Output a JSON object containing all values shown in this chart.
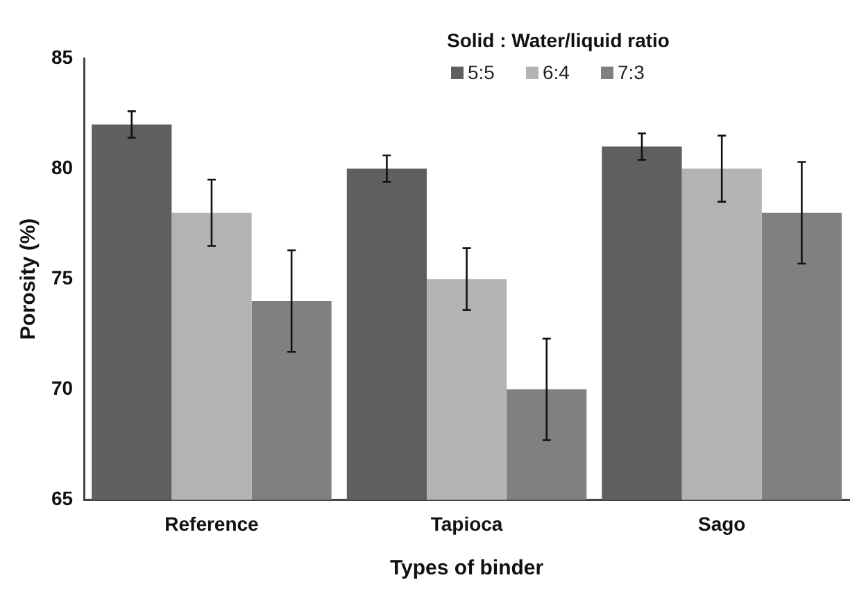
{
  "chart_data": {
    "type": "bar",
    "xlabel": "Types of binder",
    "ylabel": "Porosity (%)",
    "legend_title": "Solid : Water/liquid ratio",
    "categories": [
      "Reference",
      "Tapioca",
      "Sago"
    ],
    "series": [
      {
        "name": "5:5",
        "color": "#5f5f5f",
        "values": [
          82,
          80,
          81
        ],
        "errors": [
          0.6,
          0.6,
          0.6
        ]
      },
      {
        "name": "6:4",
        "color": "#b3b3b3",
        "values": [
          78,
          75,
          80
        ],
        "errors": [
          1.5,
          1.4,
          1.5
        ]
      },
      {
        "name": "7:3",
        "color": "#808080",
        "values": [
          74,
          70,
          78
        ],
        "errors": [
          2.3,
          2.3,
          2.3
        ]
      }
    ],
    "ylim": [
      65,
      85
    ],
    "yticks": [
      65,
      70,
      75,
      80,
      85
    ],
    "grid": false,
    "legend": "top right"
  }
}
